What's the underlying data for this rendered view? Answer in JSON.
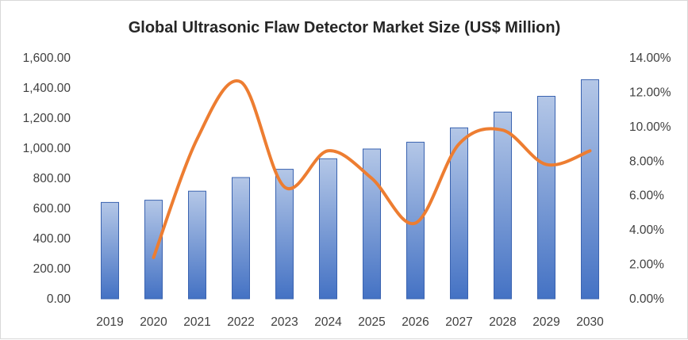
{
  "chart_data": {
    "type": "bar+line",
    "title": "Global Ultrasonic Flaw Detector Market Size (US$ Million)",
    "categories": [
      "2019",
      "2020",
      "2021",
      "2022",
      "2023",
      "2024",
      "2025",
      "2026",
      "2027",
      "2028",
      "2029",
      "2030"
    ],
    "series": [
      {
        "type": "bar",
        "axis": "left",
        "values": [
          640,
          655,
          715,
          805,
          860,
          930,
          995,
          1040,
          1135,
          1240,
          1345,
          1455
        ]
      },
      {
        "type": "line",
        "axis": "right",
        "values": [
          null,
          2.4,
          9.3,
          12.6,
          6.5,
          8.6,
          7.0,
          4.4,
          9.0,
          9.8,
          7.8,
          8.6
        ]
      }
    ],
    "y_left": {
      "min": 0,
      "max": 1600,
      "ticks": [
        "0.00",
        "200.00",
        "400.00",
        "600.00",
        "800.00",
        "1,000.00",
        "1,200.00",
        "1,400.00",
        "1,600.00"
      ]
    },
    "y_right": {
      "min": 0,
      "max": 14,
      "ticks": [
        "0.00%",
        "2.00%",
        "4.00%",
        "6.00%",
        "8.00%",
        "10.00%",
        "12.00%",
        "14.00%"
      ]
    },
    "grid": false,
    "legend": "none",
    "colors": {
      "bar_top": "#b4c7e7",
      "bar_bottom": "#4472c4",
      "bar_edge": "#3a63b0",
      "line": "#ed7d31"
    }
  }
}
